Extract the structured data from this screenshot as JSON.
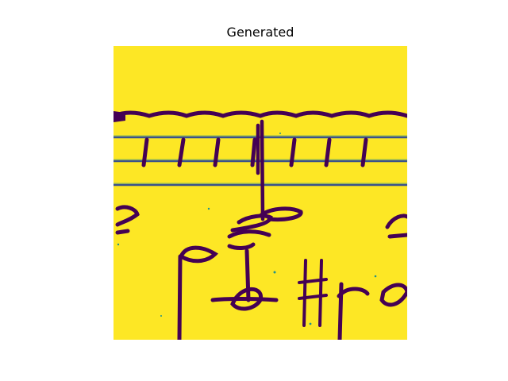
{
  "figure": {
    "title": "Generated"
  },
  "image": {
    "colormap": "viridis",
    "background_color": "#fde725",
    "ink_color": "#440154",
    "edge_color": "#21918c"
  }
}
